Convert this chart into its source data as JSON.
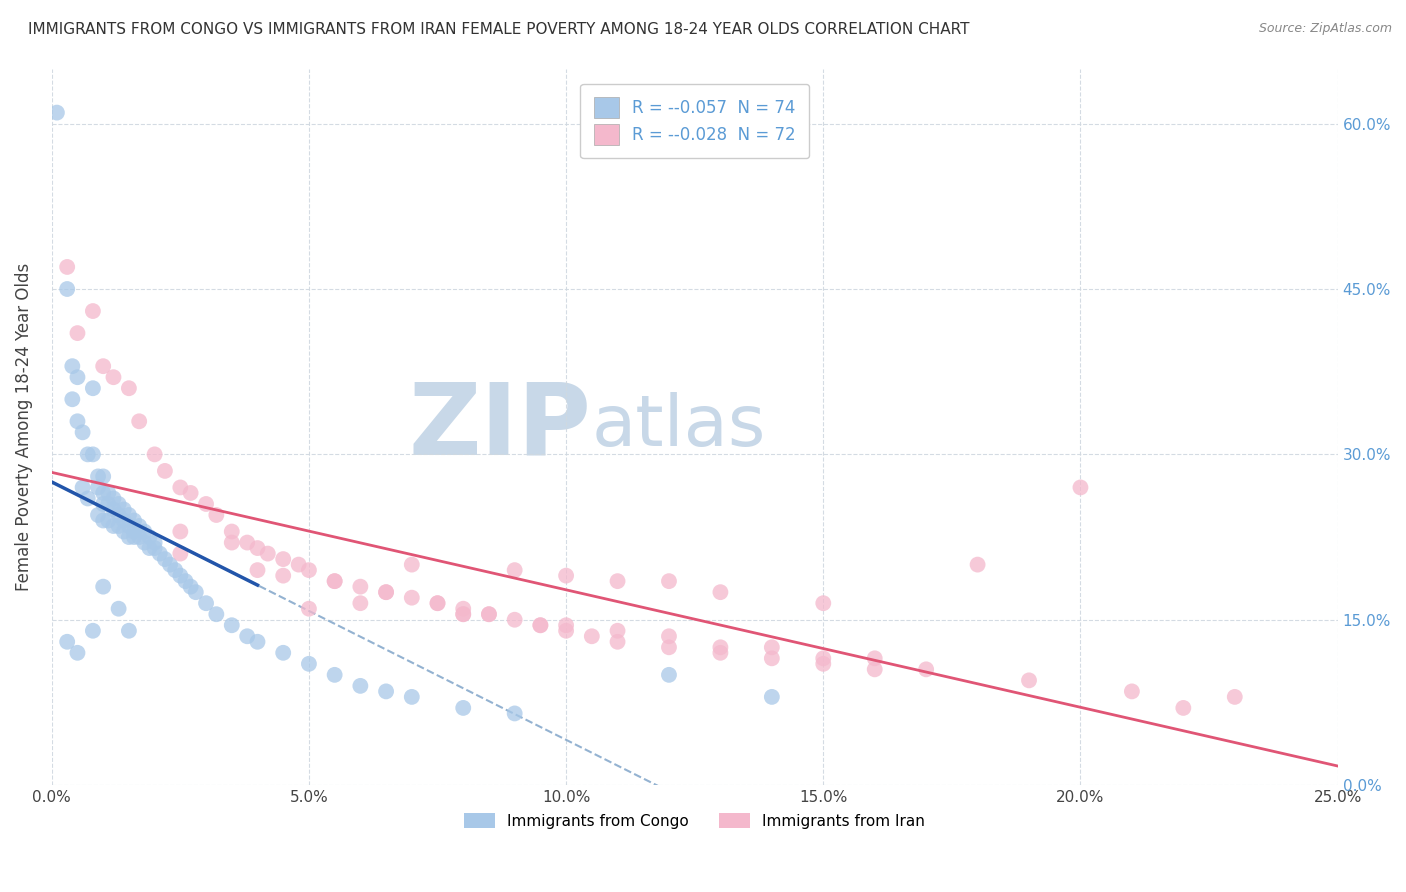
{
  "title": "IMMIGRANTS FROM CONGO VS IMMIGRANTS FROM IRAN FEMALE POVERTY AMONG 18-24 YEAR OLDS CORRELATION CHART",
  "source_text": "Source: ZipAtlas.com",
  "ylabel": "Female Poverty Among 18-24 Year Olds",
  "xlim": [
    0.0,
    0.25
  ],
  "ylim": [
    0.0,
    0.65
  ],
  "xticks": [
    0.0,
    0.05,
    0.1,
    0.15,
    0.2,
    0.25
  ],
  "yticks": [
    0.0,
    0.15,
    0.3,
    0.45,
    0.6
  ],
  "legend_labels": [
    "Immigrants from Congo",
    "Immigrants from Iran"
  ],
  "legend_r_congo": "-0.057",
  "legend_n_congo": "74",
  "legend_r_iran": "-0.028",
  "legend_n_iran": "72",
  "blue_color": "#a8c8e8",
  "pink_color": "#f4b8cc",
  "blue_line_color": "#2255aa",
  "pink_line_color": "#e05575",
  "dashed_line_color": "#88aacc",
  "background_color": "#ffffff",
  "watermark_zip": "ZIP",
  "watermark_atlas": "atlas",
  "watermark_color": "#c8d8e8",
  "right_ytick_color": "#5b9bd5",
  "grid_color": "#d0d8e0",
  "congo_x": [
    0.001,
    0.003,
    0.004,
    0.004,
    0.005,
    0.005,
    0.006,
    0.006,
    0.007,
    0.007,
    0.008,
    0.008,
    0.009,
    0.009,
    0.009,
    0.01,
    0.01,
    0.01,
    0.01,
    0.011,
    0.011,
    0.011,
    0.012,
    0.012,
    0.012,
    0.013,
    0.013,
    0.013,
    0.014,
    0.014,
    0.014,
    0.015,
    0.015,
    0.015,
    0.016,
    0.016,
    0.016,
    0.017,
    0.017,
    0.018,
    0.018,
    0.019,
    0.019,
    0.02,
    0.02,
    0.021,
    0.022,
    0.023,
    0.024,
    0.025,
    0.026,
    0.027,
    0.028,
    0.03,
    0.032,
    0.035,
    0.038,
    0.04,
    0.045,
    0.05,
    0.055,
    0.06,
    0.065,
    0.07,
    0.08,
    0.09,
    0.12,
    0.14,
    0.003,
    0.005,
    0.008,
    0.01,
    0.013,
    0.015
  ],
  "congo_y": [
    0.61,
    0.45,
    0.38,
    0.35,
    0.37,
    0.33,
    0.32,
    0.27,
    0.3,
    0.26,
    0.36,
    0.3,
    0.28,
    0.27,
    0.245,
    0.28,
    0.265,
    0.255,
    0.24,
    0.265,
    0.255,
    0.24,
    0.26,
    0.25,
    0.235,
    0.255,
    0.245,
    0.235,
    0.25,
    0.24,
    0.23,
    0.245,
    0.235,
    0.225,
    0.24,
    0.23,
    0.225,
    0.235,
    0.225,
    0.23,
    0.22,
    0.225,
    0.215,
    0.22,
    0.215,
    0.21,
    0.205,
    0.2,
    0.195,
    0.19,
    0.185,
    0.18,
    0.175,
    0.165,
    0.155,
    0.145,
    0.135,
    0.13,
    0.12,
    0.11,
    0.1,
    0.09,
    0.085,
    0.08,
    0.07,
    0.065,
    0.1,
    0.08,
    0.13,
    0.12,
    0.14,
    0.18,
    0.16,
    0.14
  ],
  "iran_x": [
    0.003,
    0.005,
    0.008,
    0.01,
    0.012,
    0.015,
    0.017,
    0.02,
    0.022,
    0.025,
    0.027,
    0.03,
    0.032,
    0.035,
    0.038,
    0.04,
    0.042,
    0.045,
    0.048,
    0.05,
    0.055,
    0.06,
    0.065,
    0.07,
    0.075,
    0.08,
    0.085,
    0.09,
    0.095,
    0.1,
    0.105,
    0.11,
    0.12,
    0.13,
    0.14,
    0.15,
    0.16,
    0.18,
    0.2,
    0.22,
    0.025,
    0.035,
    0.045,
    0.055,
    0.065,
    0.075,
    0.085,
    0.095,
    0.11,
    0.13,
    0.15,
    0.17,
    0.19,
    0.21,
    0.23,
    0.05,
    0.07,
    0.09,
    0.11,
    0.13,
    0.15,
    0.08,
    0.1,
    0.12,
    0.14,
    0.16,
    0.06,
    0.08,
    0.1,
    0.12,
    0.025,
    0.04
  ],
  "iran_y": [
    0.47,
    0.41,
    0.43,
    0.38,
    0.37,
    0.36,
    0.33,
    0.3,
    0.285,
    0.27,
    0.265,
    0.255,
    0.245,
    0.23,
    0.22,
    0.215,
    0.21,
    0.205,
    0.2,
    0.195,
    0.185,
    0.18,
    0.175,
    0.17,
    0.165,
    0.16,
    0.155,
    0.15,
    0.145,
    0.14,
    0.135,
    0.13,
    0.125,
    0.12,
    0.115,
    0.11,
    0.105,
    0.2,
    0.27,
    0.07,
    0.23,
    0.22,
    0.19,
    0.185,
    0.175,
    0.165,
    0.155,
    0.145,
    0.14,
    0.125,
    0.115,
    0.105,
    0.095,
    0.085,
    0.08,
    0.16,
    0.2,
    0.195,
    0.185,
    0.175,
    0.165,
    0.155,
    0.145,
    0.135,
    0.125,
    0.115,
    0.165,
    0.155,
    0.19,
    0.185,
    0.21,
    0.195
  ]
}
